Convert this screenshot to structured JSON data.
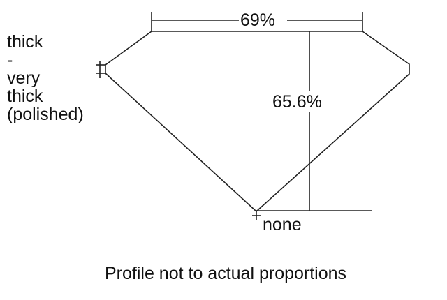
{
  "diagram": {
    "girdle_label": [
      "thick",
      "-",
      "very",
      "thick",
      "(polished)"
    ],
    "table_percent": "69%",
    "depth_percent": "65.6%",
    "culet_label": "none",
    "caption": "Profile not to actual proportions",
    "line_color": "#222222"
  }
}
